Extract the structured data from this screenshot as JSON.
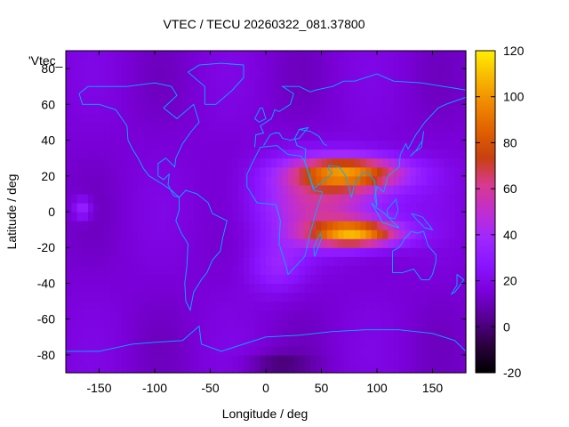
{
  "chart_data": {
    "type": "heatmap",
    "title": "VTEC / TECU 20260322_081.37800",
    "xlabel": "Longitude / deg",
    "ylabel": "Latitude / deg",
    "legend_key": "'Vtec_",
    "xlim": [
      -180,
      180
    ],
    "ylim": [
      -90,
      90
    ],
    "x_ticks": [
      -150,
      -100,
      -50,
      0,
      50,
      100,
      150
    ],
    "y_ticks": [
      -80,
      -60,
      -40,
      -20,
      0,
      20,
      40,
      60,
      80
    ],
    "colorbar": {
      "range": [
        -20,
        120
      ],
      "ticks": [
        -20,
        0,
        20,
        40,
        60,
        80,
        100,
        120
      ],
      "palette": [
        "#000000",
        "#2a003c",
        "#55008f",
        "#7a00d8",
        "#8a14ff",
        "#9f28ff",
        "#c02ed0",
        "#d83a90",
        "#c84010",
        "#e06000",
        "#f08800",
        "#f8b800",
        "#ffee00"
      ]
    },
    "background_level": 15,
    "features": [
      {
        "name": "equatorial-anomaly-africa-asia",
        "lon": 75,
        "lat": 22,
        "lon_width": 50,
        "lat_width": 9,
        "peak": 68
      },
      {
        "name": "equatorial-anomaly-southern-crest",
        "lon": 80,
        "lat": -12,
        "lon_width": 40,
        "lat_width": 7,
        "peak": 78
      },
      {
        "name": "dayside-broad-enhancement",
        "lon": 55,
        "lat": 5,
        "lon_width": 60,
        "lat_width": 22,
        "peak": 40
      },
      {
        "name": "atlantic-tail",
        "lon": 10,
        "lat": -30,
        "lon_width": 25,
        "lat_width": 15,
        "peak": 18
      },
      {
        "name": "pacific-patch",
        "lon": -165,
        "lat": 2,
        "lon_width": 8,
        "lat_width": 6,
        "peak": 22
      },
      {
        "name": "antarctic-depletion",
        "lon": 10,
        "lat": -85,
        "lon_width": 30,
        "lat_width": 6,
        "peak": -14
      }
    ],
    "grid": false,
    "coastline_color": "#00b0ff"
  }
}
